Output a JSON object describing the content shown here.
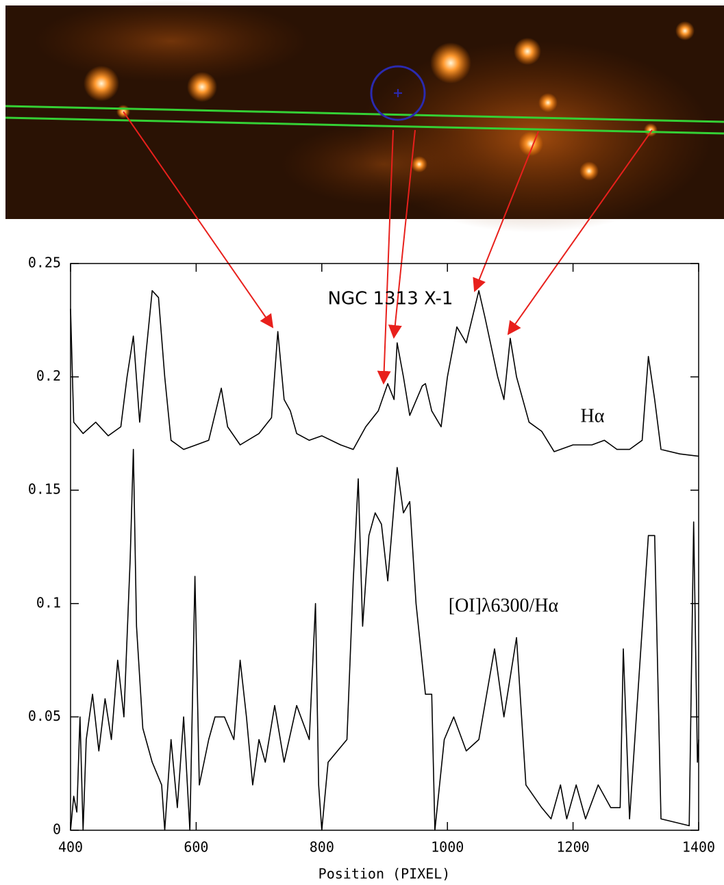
{
  "chart_data": {
    "type": "line",
    "title": "NGC 1313 X-1",
    "x_label": "Position (PIXEL)",
    "xlim": [
      400,
      1400
    ],
    "xticks": [
      400,
      600,
      800,
      1000,
      1200,
      1400
    ],
    "ylim": [
      0,
      0.25
    ],
    "yticks": [
      0,
      0.05,
      0.1,
      0.15,
      0.2,
      0.25
    ],
    "series": [
      {
        "name": "Hα",
        "color": "#000000",
        "x": [
          400,
          405,
          420,
          440,
          460,
          480,
          490,
          500,
          510,
          520,
          530,
          540,
          550,
          560,
          580,
          600,
          620,
          640,
          650,
          670,
          700,
          720,
          730,
          740,
          750,
          760,
          780,
          800,
          830,
          850,
          870,
          890,
          905,
          915,
          920,
          930,
          940,
          960,
          965,
          975,
          990,
          1000,
          1015,
          1030,
          1050,
          1060,
          1080,
          1090,
          1100,
          1110,
          1130,
          1150,
          1170,
          1200,
          1230,
          1250,
          1270,
          1290,
          1310,
          1320,
          1330,
          1340,
          1370,
          1400
        ],
        "values": [
          0.23,
          0.18,
          0.175,
          0.18,
          0.174,
          0.178,
          0.2,
          0.218,
          0.18,
          0.21,
          0.238,
          0.235,
          0.2,
          0.172,
          0.168,
          0.17,
          0.172,
          0.195,
          0.178,
          0.17,
          0.175,
          0.182,
          0.22,
          0.19,
          0.185,
          0.175,
          0.172,
          0.174,
          0.17,
          0.168,
          0.178,
          0.185,
          0.197,
          0.19,
          0.215,
          0.2,
          0.183,
          0.196,
          0.197,
          0.185,
          0.178,
          0.2,
          0.222,
          0.215,
          0.238,
          0.226,
          0.2,
          0.19,
          0.217,
          0.2,
          0.18,
          0.176,
          0.167,
          0.17,
          0.17,
          0.172,
          0.168,
          0.168,
          0.172,
          0.209,
          0.19,
          0.168,
          0.166,
          0.165
        ]
      },
      {
        "name": "[OI]λ6300/Hα",
        "color": "#000000",
        "x": [
          400,
          405,
          410,
          415,
          420,
          425,
          435,
          445,
          455,
          465,
          475,
          485,
          495,
          500,
          505,
          515,
          530,
          545,
          550,
          560,
          570,
          580,
          590,
          598,
          605,
          620,
          630,
          645,
          660,
          670,
          680,
          690,
          700,
          710,
          725,
          740,
          760,
          780,
          790,
          795,
          800,
          810,
          840,
          850,
          858,
          865,
          875,
          885,
          895,
          905,
          920,
          930,
          940,
          950,
          965,
          975,
          980,
          995,
          1010,
          1030,
          1050,
          1075,
          1090,
          1110,
          1125,
          1150,
          1165,
          1180,
          1190,
          1205,
          1220,
          1240,
          1260,
          1275,
          1280,
          1290,
          1320,
          1330,
          1340,
          1385,
          1392,
          1398,
          1400
        ],
        "values": [
          0,
          0.015,
          0.008,
          0.05,
          0,
          0.04,
          0.06,
          0.035,
          0.058,
          0.04,
          0.075,
          0.05,
          0.12,
          0.168,
          0.09,
          0.045,
          0.03,
          0.02,
          0,
          0.04,
          0.01,
          0.05,
          0,
          0.112,
          0.02,
          0.04,
          0.05,
          0.05,
          0.04,
          0.075,
          0.05,
          0.02,
          0.04,
          0.03,
          0.055,
          0.03,
          0.055,
          0.04,
          0.1,
          0.02,
          0,
          0.03,
          0.04,
          0.11,
          0.155,
          0.09,
          0.13,
          0.14,
          0.135,
          0.11,
          0.16,
          0.14,
          0.145,
          0.1,
          0.06,
          0.06,
          0,
          0.04,
          0.05,
          0.035,
          0.04,
          0.08,
          0.05,
          0.085,
          0.02,
          0.01,
          0.005,
          0.02,
          0.005,
          0.02,
          0.005,
          0.02,
          0.01,
          0.01,
          0.08,
          0.005,
          0.13,
          0.13,
          0.005,
          0.002,
          0.136,
          0.03,
          0.04
        ]
      }
    ]
  }
}
